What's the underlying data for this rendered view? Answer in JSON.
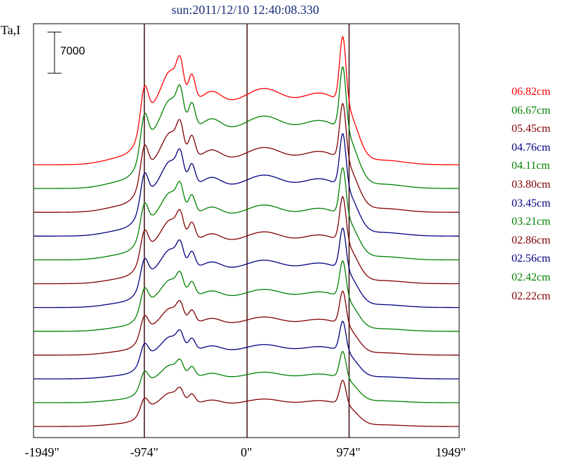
{
  "title": "sun:2011/12/10 12:40:08.330",
  "ylabel": "Ta,I",
  "scale_bar_label": "7000",
  "chart_data": {
    "type": "line",
    "title": "sun:2011/12/10 12:40:08.330",
    "ylabel": "Ta,I",
    "xlabel": "",
    "xlim": [
      -2030,
      2030
    ],
    "x_ticks": [
      {
        "value": -1949,
        "label": "-1949\""
      },
      {
        "value": -974,
        "label": "-974\""
      },
      {
        "value": 0,
        "label": "0\""
      },
      {
        "value": 974,
        "label": "974\""
      },
      {
        "value": 1949,
        "label": "1949\""
      }
    ],
    "vertical_lines": [
      -974,
      0,
      974
    ],
    "scale_bar_value": 7000,
    "series": [
      {
        "name": "06.82cm",
        "color": "#ff0000",
        "amp": 1.0
      },
      {
        "name": "06.67cm",
        "color": "#008000",
        "amp": 0.95
      },
      {
        "name": "05.45cm",
        "color": "#800000",
        "amp": 0.85
      },
      {
        "name": "04.76cm",
        "color": "#000080",
        "amp": 0.8
      },
      {
        "name": "04.11cm",
        "color": "#008000",
        "amp": 0.72
      },
      {
        "name": "03.80cm",
        "color": "#800000",
        "amp": 0.68
      },
      {
        "name": "03.45cm",
        "color": "#000080",
        "amp": 0.62
      },
      {
        "name": "03.21cm",
        "color": "#008000",
        "amp": 0.55
      },
      {
        "name": "02.86cm",
        "color": "#800000",
        "amp": 0.5
      },
      {
        "name": "02.56cm",
        "color": "#000080",
        "amp": 0.45
      },
      {
        "name": "02.42cm",
        "color": "#008000",
        "amp": 0.4
      },
      {
        "name": "02.22cm",
        "color": "#800000",
        "amp": 0.36
      }
    ]
  }
}
